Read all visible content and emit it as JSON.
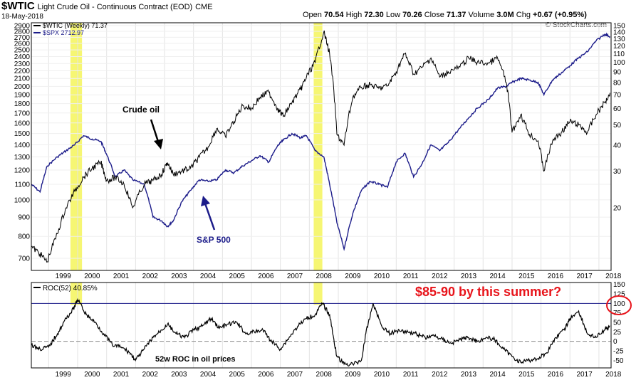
{
  "header": {
    "symbol": "$WTIC",
    "description": "Light Crude Oil - Continuous Contract (EOD)",
    "exchange": "CME",
    "date": "18-May-2018",
    "open_label": "Open",
    "open": "70.54",
    "high_label": "High",
    "high": "72.30",
    "low_label": "Low",
    "low": "70.26",
    "close_label": "Close",
    "close": "71.37",
    "volume_label": "Volume",
    "volume": "3.0M",
    "chg_label": "Chg",
    "chg": "+0.67 (+0.95%)",
    "credit": "© StockCharts.com"
  },
  "colors": {
    "oil": "#000000",
    "spx": "#1c1c8a",
    "highlight": "#f5f55a",
    "annotation_red": "#e8141b",
    "zero_line": "#888888"
  },
  "chart_data": [
    {
      "type": "line",
      "legend": [
        {
          "label": "$WTIC (Weekly) 71.37",
          "color": "#000000"
        },
        {
          "label": "$SPX 2712.97",
          "color": "#1c1c8a"
        }
      ],
      "x_ticks": [
        "1999",
        "2000",
        "2001",
        "2002",
        "2003",
        "2004",
        "2005",
        "2006",
        "2007",
        "2008",
        "2009",
        "2010",
        "2011",
        "2012",
        "2013",
        "2014",
        "2015",
        "2016",
        "2017",
        "2018"
      ],
      "left_axis": {
        "label": "",
        "scale": "log",
        "ticks": [
          700,
          800,
          900,
          1000,
          1100,
          1200,
          1300,
          1400,
          1500,
          1600,
          1700,
          1800,
          1900,
          2000,
          2100,
          2200,
          2300,
          2400,
          2500,
          2600,
          2700,
          2800,
          2900
        ],
        "range": [
          650,
          2950
        ]
      },
      "right_axis": {
        "label": "",
        "scale": "log",
        "ticks": [
          20,
          30,
          40,
          50,
          60,
          70,
          80,
          90,
          100,
          110,
          120,
          130,
          140,
          150
        ],
        "range": [
          10,
          155
        ]
      },
      "series": [
        {
          "name": "$WTIC (Weekly) 71.37",
          "axis": "right",
          "x": [
            1998.4,
            1998.7,
            1998.95,
            1999.3,
            1999.6,
            1999.9,
            2000.2,
            2000.5,
            2000.8,
            2001.0,
            2001.3,
            2001.6,
            2001.9,
            2002.3,
            2002.6,
            2002.9,
            2003.1,
            2003.3,
            2003.6,
            2003.9,
            2004.2,
            2004.5,
            2004.8,
            2005.1,
            2005.4,
            2005.7,
            2006.0,
            2006.3,
            2006.6,
            2006.9,
            2007.1,
            2007.4,
            2007.7,
            2007.9,
            2008.2,
            2008.5,
            2008.7,
            2008.95,
            2009.2,
            2009.5,
            2009.8,
            2010.1,
            2010.4,
            2010.7,
            2011.0,
            2011.3,
            2011.6,
            2011.9,
            2012.2,
            2012.5,
            2012.8,
            2013.2,
            2013.5,
            2013.8,
            2014.2,
            2014.5,
            2014.8,
            2015.0,
            2015.3,
            2015.6,
            2015.9,
            2016.1,
            2016.4,
            2016.7,
            2017.0,
            2017.3,
            2017.6,
            2017.9,
            2018.2,
            2018.38
          ],
          "y": [
            13,
            12,
            11,
            15,
            20,
            24,
            28,
            31,
            33,
            27,
            28,
            26,
            20,
            26,
            27,
            29,
            33,
            29,
            30,
            31,
            35,
            39,
            48,
            44,
            52,
            62,
            60,
            68,
            72,
            60,
            55,
            64,
            74,
            85,
            100,
            140,
            110,
            45,
            40,
            68,
            76,
            78,
            75,
            77,
            90,
            110,
            88,
            95,
            105,
            85,
            90,
            95,
            105,
            100,
            99,
            105,
            80,
            46,
            56,
            45,
            42,
            30,
            42,
            46,
            52,
            50,
            46,
            56,
            64,
            71.37
          ]
        },
        {
          "name": "$SPX 2712.97",
          "axis": "left",
          "x": [
            1998.4,
            1998.7,
            1998.95,
            1999.3,
            1999.6,
            1999.9,
            2000.2,
            2000.5,
            2000.8,
            2001.0,
            2001.3,
            2001.6,
            2001.9,
            2002.3,
            2002.6,
            2002.9,
            2003.1,
            2003.3,
            2003.6,
            2003.9,
            2004.2,
            2004.5,
            2004.8,
            2005.1,
            2005.4,
            2005.7,
            2006.0,
            2006.3,
            2006.6,
            2006.9,
            2007.1,
            2007.4,
            2007.7,
            2007.9,
            2008.2,
            2008.5,
            2008.7,
            2008.95,
            2009.2,
            2009.5,
            2009.8,
            2010.1,
            2010.4,
            2010.7,
            2011.0,
            2011.3,
            2011.6,
            2011.9,
            2012.2,
            2012.5,
            2012.8,
            2013.2,
            2013.5,
            2013.8,
            2014.2,
            2014.5,
            2014.8,
            2015.0,
            2015.3,
            2015.6,
            2015.9,
            2016.1,
            2016.4,
            2016.7,
            2017.0,
            2017.3,
            2017.6,
            2017.9,
            2018.2,
            2018.38
          ],
          "y": [
            1100,
            1050,
            1230,
            1300,
            1350,
            1400,
            1480,
            1450,
            1430,
            1320,
            1150,
            1200,
            1130,
            1100,
            900,
            880,
            850,
            880,
            990,
            1060,
            1130,
            1120,
            1130,
            1200,
            1180,
            1230,
            1270,
            1310,
            1260,
            1390,
            1440,
            1500,
            1460,
            1480,
            1350,
            1300,
            1100,
            870,
            740,
            920,
            1060,
            1120,
            1100,
            1080,
            1260,
            1330,
            1150,
            1250,
            1400,
            1350,
            1420,
            1550,
            1650,
            1750,
            1850,
            1980,
            2000,
            2050,
            2100,
            2080,
            2050,
            1900,
            2080,
            2170,
            2270,
            2380,
            2470,
            2640,
            2750,
            2712.97
          ]
        }
      ],
      "highlights": [
        [
          1999.75,
          2000.15
        ],
        [
          2008.15,
          2008.45
        ]
      ],
      "annotations": [
        {
          "text": "Crude oil",
          "color": "#000000"
        },
        {
          "text": "S&P 500",
          "color": "#1c1c8a"
        }
      ]
    },
    {
      "type": "line",
      "legend": [
        {
          "label": "ROC(52) 40.85%",
          "color": "#000000"
        }
      ],
      "x_ticks": [
        "1999",
        "2000",
        "2001",
        "2002",
        "2003",
        "2004",
        "2005",
        "2006",
        "2007",
        "2008",
        "2009",
        "2010",
        "2011",
        "2012",
        "2013",
        "2014",
        "2015",
        "2016",
        "2017",
        "2018"
      ],
      "right_axis": {
        "label": "",
        "ticks": [
          -50,
          -25,
          0,
          25,
          50,
          75,
          100,
          125,
          150
        ],
        "range": [
          -70,
          155
        ]
      },
      "reference_lines": [
        {
          "y": 100,
          "style": "solid",
          "color": "#1c1c8a"
        },
        {
          "y": 0,
          "style": "dashed",
          "color": "#888888"
        }
      ],
      "series": [
        {
          "name": "ROC(52) 40.85%",
          "x": [
            1998.4,
            1998.7,
            1999.0,
            1999.3,
            1999.6,
            1999.85,
            2000.0,
            2000.3,
            2000.6,
            2000.9,
            2001.2,
            2001.5,
            2001.8,
            2002.0,
            2002.3,
            2002.6,
            2002.9,
            2003.1,
            2003.4,
            2003.7,
            2004.0,
            2004.3,
            2004.6,
            2004.9,
            2005.2,
            2005.5,
            2005.8,
            2006.1,
            2006.4,
            2006.7,
            2007.0,
            2007.3,
            2007.6,
            2007.9,
            2008.2,
            2008.45,
            2008.7,
            2008.95,
            2009.2,
            2009.5,
            2009.8,
            2009.95,
            2010.2,
            2010.5,
            2010.8,
            2011.1,
            2011.4,
            2011.7,
            2012.0,
            2012.3,
            2012.6,
            2012.9,
            2013.2,
            2013.5,
            2013.8,
            2014.1,
            2014.4,
            2014.7,
            2015.0,
            2015.3,
            2015.6,
            2015.9,
            2016.2,
            2016.5,
            2016.8,
            2017.0,
            2017.3,
            2017.6,
            2017.9,
            2018.2,
            2018.38
          ],
          "y": [
            -10,
            -20,
            -15,
            20,
            60,
            85,
            110,
            70,
            50,
            20,
            -10,
            -15,
            -30,
            -50,
            -20,
            10,
            30,
            45,
            20,
            10,
            30,
            40,
            60,
            35,
            45,
            50,
            20,
            25,
            30,
            0,
            -20,
            10,
            40,
            60,
            70,
            100,
            70,
            -40,
            -60,
            -60,
            -50,
            20,
            100,
            40,
            20,
            30,
            25,
            20,
            10,
            15,
            5,
            -5,
            5,
            10,
            0,
            10,
            5,
            -20,
            -40,
            -55,
            -50,
            -45,
            -30,
            10,
            30,
            60,
            80,
            20,
            10,
            30,
            40.85
          ]
        }
      ],
      "annotations": [
        {
          "text": "$85-90 by this summer?",
          "color": "#e8141b"
        },
        {
          "text": "52w ROC in oil prices",
          "color": "#000000"
        }
      ]
    }
  ]
}
